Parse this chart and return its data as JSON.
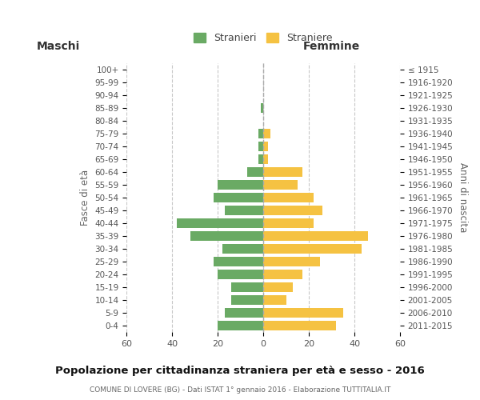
{
  "age_groups_bottom_to_top": [
    "0-4",
    "5-9",
    "10-14",
    "15-19",
    "20-24",
    "25-29",
    "30-34",
    "35-39",
    "40-44",
    "45-49",
    "50-54",
    "55-59",
    "60-64",
    "65-69",
    "70-74",
    "75-79",
    "80-84",
    "85-89",
    "90-94",
    "95-99",
    "100+"
  ],
  "birth_years_bottom_to_top": [
    "2011-2015",
    "2006-2010",
    "2001-2005",
    "1996-2000",
    "1991-1995",
    "1986-1990",
    "1981-1985",
    "1976-1980",
    "1971-1975",
    "1966-1970",
    "1961-1965",
    "1956-1960",
    "1951-1955",
    "1946-1950",
    "1941-1945",
    "1936-1940",
    "1931-1935",
    "1926-1930",
    "1921-1925",
    "1916-1920",
    "≤ 1915"
  ],
  "males_bottom_to_top": [
    20,
    17,
    14,
    14,
    20,
    22,
    18,
    32,
    38,
    17,
    22,
    20,
    7,
    2,
    2,
    2,
    0,
    1,
    0,
    0,
    0
  ],
  "females_bottom_to_top": [
    32,
    35,
    10,
    13,
    17,
    25,
    43,
    46,
    22,
    26,
    22,
    15,
    17,
    2,
    2,
    3,
    0,
    0,
    0,
    0,
    0
  ],
  "male_color": "#6aaa64",
  "female_color": "#f5c242",
  "background_color": "#ffffff",
  "grid_color": "#c8c8c8",
  "title": "Popolazione per cittadinanza straniera per età e sesso - 2016",
  "subtitle": "COMUNE DI LOVERE (BG) - Dati ISTAT 1° gennaio 2016 - Elaborazione TUTTITALIA.IT",
  "label_left": "Maschi",
  "label_right": "Femmine",
  "ylabel_left": "Fasce di età",
  "ylabel_right": "Anni di nascita",
  "legend_male": "Stranieri",
  "legend_female": "Straniere",
  "xlim": 60,
  "bar_height": 0.75
}
